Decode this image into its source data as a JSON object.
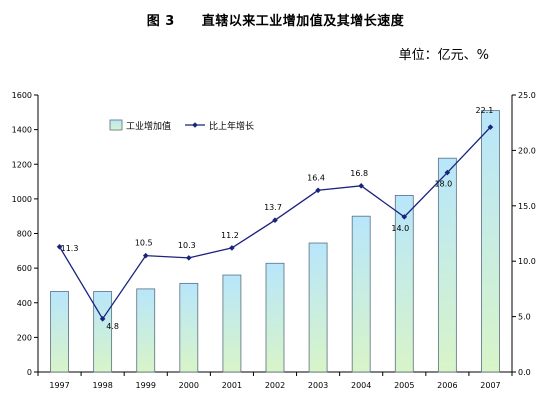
{
  "chart_data": {
    "type": "bar+line",
    "title": "图 3　　直辖以来工业增加值及其增长速度",
    "unit_label": "单位：亿元、%",
    "categories": [
      "1997",
      "1998",
      "1999",
      "2000",
      "2001",
      "2002",
      "2003",
      "2004",
      "2005",
      "2006",
      "2007"
    ],
    "series": [
      {
        "name": "工业增加值",
        "type": "bar",
        "axis": "left",
        "values": [
          465,
          465,
          480,
          512,
          560,
          628,
          745,
          900,
          1020,
          1235,
          1510
        ]
      },
      {
        "name": "比上年增长",
        "type": "line",
        "axis": "right",
        "values": [
          11.3,
          4.8,
          10.5,
          10.3,
          11.2,
          13.7,
          16.4,
          16.8,
          14.0,
          18.0,
          22.1
        ],
        "labels": [
          "11.3",
          "4.8",
          "10.5",
          "10.3",
          "11.2",
          "13.7",
          "16.4",
          "16.8",
          "14.0",
          "18.0",
          "22.1"
        ]
      }
    ],
    "y_left": {
      "min": 0,
      "max": 1600,
      "step": 200,
      "ticks": [
        "0",
        "200",
        "400",
        "600",
        "800",
        "1000",
        "1200",
        "1400",
        "1600"
      ]
    },
    "y_right": {
      "min": 0,
      "max": 25,
      "step": 5,
      "ticks": [
        "0.0",
        "5.0",
        "10.0",
        "15.0",
        "20.0",
        "25.0"
      ]
    },
    "legend": {
      "position": "top-left",
      "entries": [
        "工业增加值",
        "比上年增长"
      ]
    },
    "colors": {
      "bar_top": "#b8e6fb",
      "bar_bottom": "#d8f4c8",
      "bar_stroke": "#5a6f80",
      "line": "#1a237e"
    },
    "grid": false
  }
}
